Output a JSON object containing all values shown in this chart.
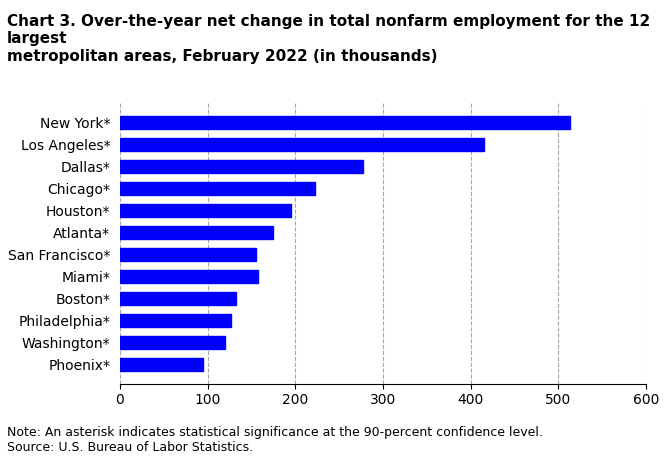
{
  "title": "Chart 3. Over-the-year net change in total nonfarm employment for the 12 largest\nmetropolitan areas, February 2022 (in thousands)",
  "categories": [
    "Phoenix*",
    "Washington*",
    "Philadelphia*",
    "Boston*",
    "Miami*",
    "San Francisco*",
    "Atlanta*",
    "Houston*",
    "Chicago*",
    "Dallas*",
    "Los Angeles*",
    "New York*"
  ],
  "values": [
    95,
    120,
    127,
    132,
    158,
    155,
    175,
    195,
    222,
    277,
    415,
    513
  ],
  "bar_color": "#0000FF",
  "xlim": [
    0,
    600
  ],
  "xticks": [
    0,
    100,
    200,
    300,
    400,
    500,
    600
  ],
  "note": "Note: An asterisk indicates statistical significance at the 90-percent confidence level.",
  "source": "Source: U.S. Bureau of Labor Statistics.",
  "title_fontsize": 11,
  "label_fontsize": 10,
  "tick_fontsize": 10,
  "note_fontsize": 9
}
